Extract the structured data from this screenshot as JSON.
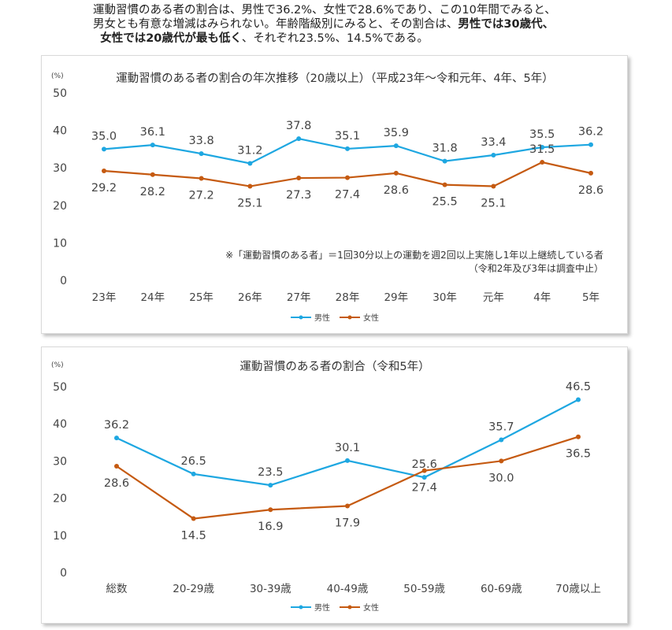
{
  "intro": {
    "line1": "運動習慣のある者の割合は、男性で36.2%、女性で28.6%であり、この10年間でみると、",
    "line2": "男女とも有意な増減はみられない。年齢階級別にみると、その割合は、",
    "line2_bold": "男性では30歳代、",
    "line3_bold": "女性では20歳代が最も低く",
    "line3": "、それぞれ23.5%、14.5%である。"
  },
  "colors": {
    "male": "#1ea7e1",
    "female": "#c55a11"
  },
  "chart_data": [
    {
      "type": "line",
      "title": "運動習慣のある者の割合の年次推移（20歳以上）（平成23年～令和元年、4年、5年）",
      "ylabel": "(%)",
      "ylim": [
        0,
        50
      ],
      "yticks": [
        0,
        10,
        20,
        30,
        40,
        50
      ],
      "categories": [
        "23年",
        "24年",
        "25年",
        "26年",
        "27年",
        "28年",
        "29年",
        "30年",
        "元年",
        "4年",
        "5年"
      ],
      "series": [
        {
          "name": "男性",
          "values": [
            35.0,
            36.1,
            33.8,
            31.2,
            37.8,
            35.1,
            35.9,
            31.8,
            33.4,
            35.5,
            36.2
          ],
          "labels": [
            "35.0",
            "36.1",
            "33.8",
            "31.2",
            "37.8",
            "35.1",
            "35.9",
            "31.8",
            "33.4",
            "35.5",
            "36.2"
          ]
        },
        {
          "name": "女性",
          "values": [
            29.2,
            28.2,
            27.2,
            25.1,
            27.3,
            27.4,
            28.6,
            25.5,
            25.1,
            31.5,
            28.6
          ],
          "labels": [
            "29.2",
            "28.2",
            "27.2",
            "25.1",
            "27.3",
            "27.4",
            "28.6",
            "25.5",
            "25.1",
            "31.5",
            "28.6"
          ]
        }
      ],
      "note1": "※「運動習慣のある者」＝1回30分以上の運動を週2回以上実施し1年以上継続している者",
      "note2": "（令和2年及び3年は調査中止）",
      "legend": "bottom"
    },
    {
      "type": "line",
      "title": "運動習慣のある者の割合（令和5年）",
      "ylabel": "(%)",
      "ylim": [
        0,
        50
      ],
      "yticks": [
        0,
        10,
        20,
        30,
        40,
        50
      ],
      "categories": [
        "総数",
        "20-29歳",
        "30-39歳",
        "40-49歳",
        "50-59歳",
        "60-69歳",
        "70歳以上"
      ],
      "series": [
        {
          "name": "男性",
          "values": [
            36.2,
            26.5,
            23.5,
            30.1,
            25.6,
            35.7,
            46.5
          ],
          "labels": [
            "36.2",
            "26.5",
            "23.5",
            "30.1",
            "25.6",
            "35.7",
            "46.5"
          ]
        },
        {
          "name": "女性",
          "values": [
            28.6,
            14.5,
            16.9,
            17.9,
            27.4,
            30.0,
            36.5
          ],
          "labels": [
            "28.6",
            "14.5",
            "16.9",
            "17.9",
            "27.4",
            "30.0",
            "36.5"
          ]
        }
      ],
      "legend": "bottom"
    }
  ]
}
